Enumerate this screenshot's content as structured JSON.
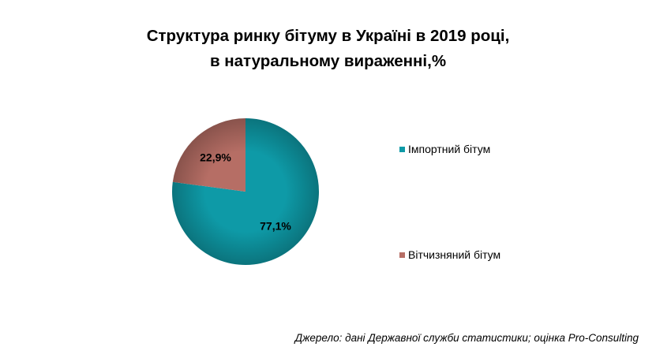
{
  "chart_data": {
    "type": "pie",
    "title_lines": [
      "Структура ринку бітуму в Україні в 2019 році,",
      "в натуральному вираженні,%"
    ],
    "categories": [
      "Імпортний бітум",
      "Вітчизняний бітум"
    ],
    "values": [
      77.1,
      22.9
    ],
    "data_labels": [
      "77,1%",
      "22,9%"
    ],
    "colors": [
      "#0e9aa7",
      "#b66e65"
    ],
    "legend_position": "right"
  },
  "source": "Джерело: дані Державної служби статистики; оцінка Pro-Consulting"
}
